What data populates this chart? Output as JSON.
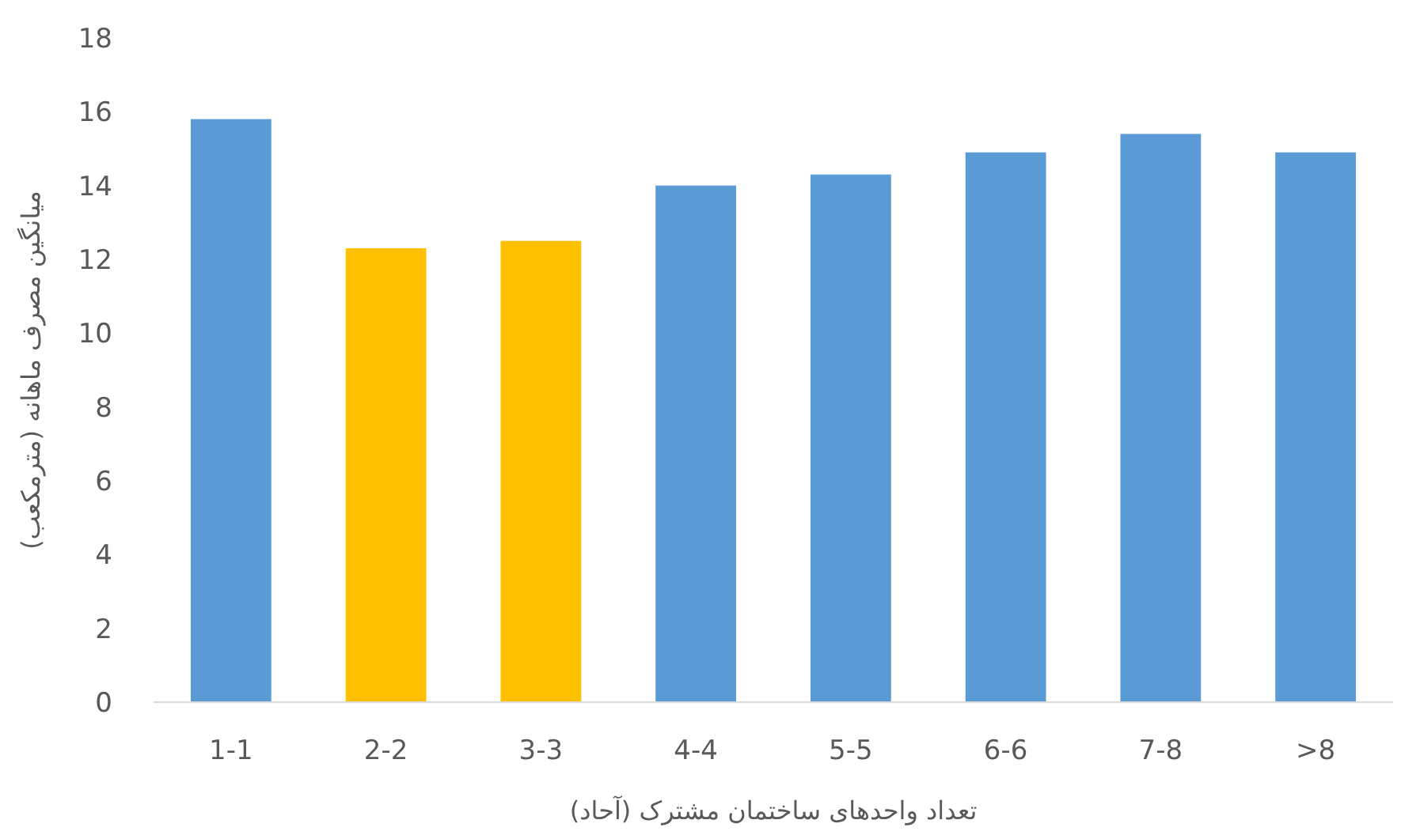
{
  "chart_data": {
    "type": "bar",
    "xlabel": "تعداد واحدهای ساختمان مشترک (آحاد)",
    "ylabel": "میانگین مصرف ماهانه (مترمکعب)",
    "categories": [
      "1-1",
      "2-2",
      "3-3",
      "4-4",
      "5-5",
      "6-6",
      "7-8",
      ">8"
    ],
    "values": [
      15.8,
      12.3,
      12.5,
      14.0,
      14.3,
      14.9,
      15.4,
      14.9
    ],
    "colors": [
      "#5b9bd5",
      "#ffc000",
      "#ffc000",
      "#5b9bd5",
      "#5b9bd5",
      "#5b9bd5",
      "#5b9bd5",
      "#5b9bd5"
    ],
    "ylim": [
      0,
      18
    ],
    "yticks": [
      0,
      2,
      4,
      6,
      8,
      10,
      12,
      14,
      16,
      18
    ],
    "grid": false
  }
}
